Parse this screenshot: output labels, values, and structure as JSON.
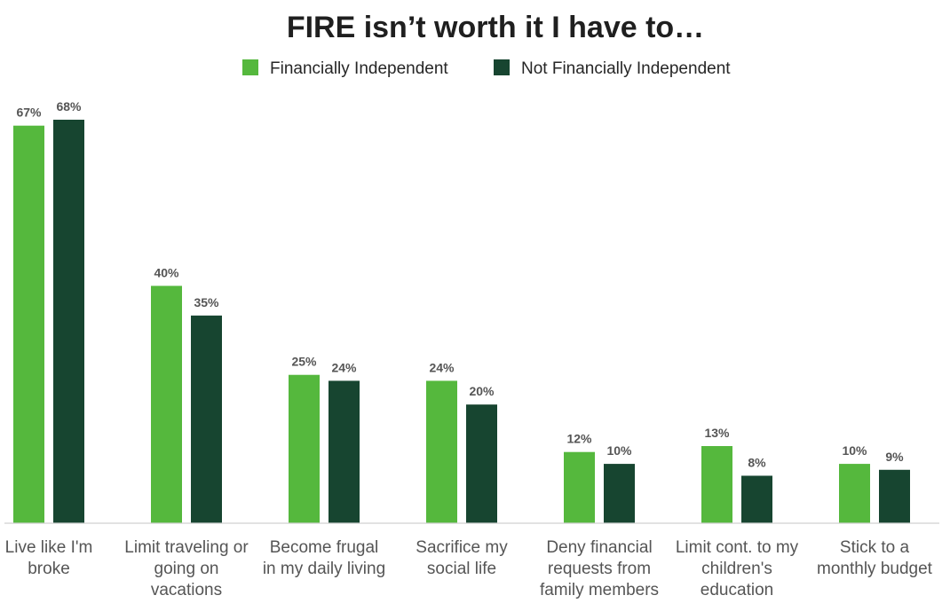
{
  "chart_data": {
    "type": "bar",
    "title": "FIRE isn’t worth it I have to…",
    "categories": [
      [
        "Live like I'm",
        "broke"
      ],
      [
        "Limit traveling or",
        "going on",
        "vacations"
      ],
      [
        "Become frugal",
        "in my daily living"
      ],
      [
        "Sacrifice my",
        "social life"
      ],
      [
        "Deny financial",
        "requests from",
        "family members"
      ],
      [
        "Limit cont. to my",
        "children's",
        "education"
      ],
      [
        "Stick to a",
        "monthly budget"
      ]
    ],
    "series": [
      {
        "name": "Financially Independent",
        "color": "#55b83d",
        "values": [
          67,
          40,
          25,
          24,
          12,
          13,
          10
        ],
        "labels": [
          "67%",
          "40%",
          "25%",
          "24%",
          "12%",
          "13%",
          "10%"
        ]
      },
      {
        "name": "Not Financially Independent",
        "color": "#174530",
        "values": [
          68,
          35,
          24,
          20,
          10,
          8,
          9
        ],
        "labels": [
          "68%",
          "35%",
          "24%",
          "20%",
          "10%",
          "8%",
          "9%"
        ]
      }
    ],
    "ylim": [
      0,
      68
    ],
    "grid": false,
    "legend": "top-center",
    "axis_color": "#d0d0d0"
  }
}
